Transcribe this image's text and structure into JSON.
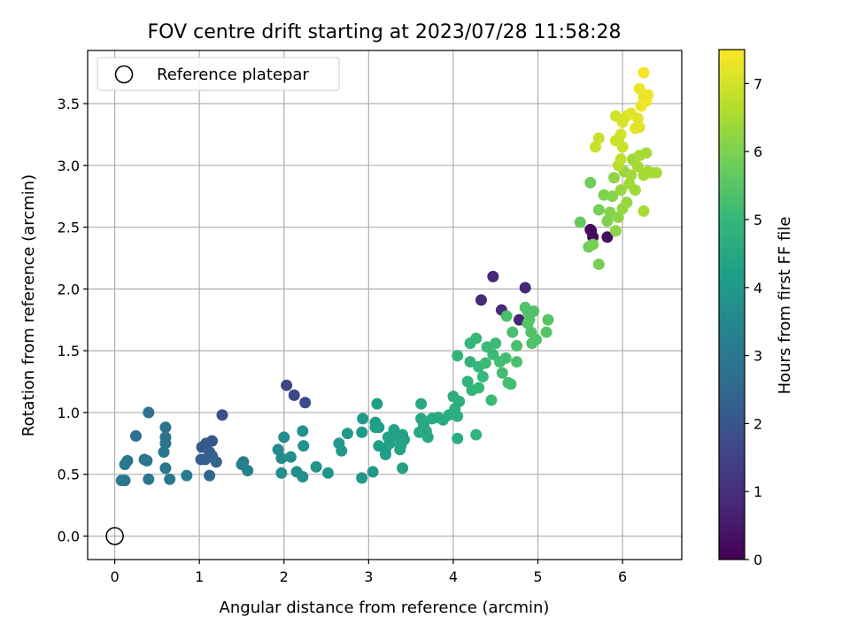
{
  "chart_data": {
    "type": "scatter",
    "title": "FOV centre drift starting at 2023/07/28 11:58:28",
    "xlabel": "Angular distance from reference (arcmin)",
    "ylabel": "Rotation from reference (arcmin)",
    "xlim": [
      -0.32,
      6.7
    ],
    "ylim": [
      -0.19,
      3.93
    ],
    "xticks": [
      0,
      1,
      2,
      3,
      4,
      5,
      6
    ],
    "yticks": [
      0.0,
      0.5,
      1.0,
      1.5,
      2.0,
      2.5,
      3.0,
      3.5
    ],
    "ytick_labels": [
      "0.0",
      "0.5",
      "1.0",
      "1.5",
      "2.0",
      "2.5",
      "3.0",
      "3.5"
    ],
    "grid": true,
    "legend": {
      "position": "top-left",
      "entries": [
        "Reference platepar"
      ]
    },
    "reference_point": {
      "x": 0,
      "y": 0,
      "marker": "open-circle"
    },
    "colorbar": {
      "label": "Hours from first FF file",
      "min": 0,
      "max": 7.5,
      "ticks": [
        0,
        1,
        2,
        3,
        4,
        5,
        6,
        7
      ],
      "colormap": [
        "#440154",
        "#482878",
        "#3e4989",
        "#31688e",
        "#26828e",
        "#1f9e89",
        "#35b779",
        "#6ece58",
        "#b5de2b",
        "#fde725"
      ]
    },
    "points": [
      [
        5.63,
        2.47,
        0.1
      ],
      [
        5.65,
        2.42,
        0.2
      ],
      [
        5.82,
        2.42,
        0.3
      ],
      [
        5.62,
        2.48,
        0.2
      ],
      [
        4.47,
        2.1,
        0.9
      ],
      [
        4.33,
        1.91,
        0.9
      ],
      [
        4.85,
        2.01,
        0.8
      ],
      [
        4.57,
        1.83,
        0.9
      ],
      [
        4.78,
        1.75,
        0.8
      ],
      [
        2.03,
        1.22,
        1.6
      ],
      [
        2.12,
        1.14,
        1.7
      ],
      [
        2.25,
        1.08,
        1.7
      ],
      [
        1.27,
        0.98,
        1.8
      ],
      [
        1.15,
        0.77,
        2.0
      ],
      [
        1.08,
        0.75,
        2.1
      ],
      [
        1.03,
        0.72,
        2.1
      ],
      [
        1.12,
        0.68,
        2.2
      ],
      [
        1.02,
        0.62,
        2.2
      ],
      [
        1.15,
        0.65,
        2.3
      ],
      [
        1.07,
        0.62,
        2.3
      ],
      [
        1.2,
        0.6,
        2.4
      ],
      [
        1.12,
        0.49,
        2.5
      ],
      [
        0.4,
        1.0,
        2.8
      ],
      [
        0.25,
        0.81,
        2.8
      ],
      [
        0.6,
        0.88,
        2.9
      ],
      [
        0.6,
        0.8,
        2.9
      ],
      [
        0.6,
        0.75,
        2.9
      ],
      [
        0.58,
        0.68,
        3.0
      ],
      [
        0.12,
        0.58,
        3.0
      ],
      [
        0.15,
        0.61,
        3.0
      ],
      [
        0.35,
        0.62,
        3.0
      ],
      [
        0.38,
        0.61,
        3.0
      ],
      [
        0.6,
        0.55,
        3.0
      ],
      [
        0.08,
        0.45,
        3.0
      ],
      [
        0.12,
        0.45,
        3.0
      ],
      [
        0.4,
        0.46,
        3.0
      ],
      [
        0.65,
        0.46,
        3.0
      ],
      [
        0.85,
        0.49,
        3.1
      ],
      [
        1.5,
        0.58,
        3.2
      ],
      [
        1.52,
        0.6,
        3.2
      ],
      [
        1.57,
        0.53,
        3.3
      ],
      [
        1.93,
        0.7,
        3.6
      ],
      [
        2.0,
        0.8,
        3.6
      ],
      [
        1.97,
        0.63,
        3.6
      ],
      [
        2.08,
        0.64,
        3.7
      ],
      [
        1.97,
        0.51,
        3.7
      ],
      [
        2.15,
        0.52,
        3.7
      ],
      [
        2.22,
        0.48,
        3.7
      ],
      [
        2.22,
        0.85,
        3.8
      ],
      [
        2.23,
        0.73,
        3.8
      ],
      [
        2.38,
        0.56,
        3.9
      ],
      [
        2.52,
        0.51,
        3.9
      ],
      [
        2.65,
        0.75,
        4.0
      ],
      [
        2.68,
        0.69,
        4.0
      ],
      [
        2.75,
        0.83,
        4.0
      ],
      [
        2.92,
        0.84,
        4.0
      ],
      [
        2.93,
        0.95,
        4.1
      ],
      [
        2.92,
        0.47,
        4.0
      ],
      [
        3.05,
        0.52,
        4.0
      ],
      [
        3.1,
        1.07,
        4.2
      ],
      [
        3.08,
        0.92,
        4.2
      ],
      [
        3.12,
        0.88,
        4.2
      ],
      [
        3.08,
        0.88,
        4.2
      ],
      [
        3.12,
        0.73,
        4.2
      ],
      [
        3.2,
        0.7,
        4.2
      ],
      [
        3.2,
        0.66,
        4.2
      ],
      [
        3.23,
        0.8,
        4.3
      ],
      [
        3.25,
        0.75,
        4.3
      ],
      [
        3.3,
        0.86,
        4.3
      ],
      [
        3.35,
        0.8,
        4.3
      ],
      [
        3.38,
        0.73,
        4.3
      ],
      [
        3.4,
        0.82,
        4.3
      ],
      [
        3.42,
        0.78,
        4.3
      ],
      [
        3.37,
        0.7,
        4.3
      ],
      [
        3.4,
        0.55,
        4.3
      ],
      [
        3.62,
        1.07,
        4.5
      ],
      [
        3.62,
        0.95,
        4.5
      ],
      [
        3.65,
        0.9,
        4.5
      ],
      [
        3.6,
        0.84,
        4.5
      ],
      [
        3.68,
        0.85,
        4.5
      ],
      [
        3.7,
        0.8,
        4.5
      ],
      [
        3.75,
        0.95,
        4.6
      ],
      [
        3.82,
        0.96,
        4.6
      ],
      [
        3.88,
        0.94,
        4.6
      ],
      [
        3.95,
        0.98,
        4.6
      ],
      [
        4.0,
        1.13,
        4.7
      ],
      [
        4.02,
        1.03,
        4.7
      ],
      [
        4.05,
        0.97,
        4.7
      ],
      [
        4.07,
        1.09,
        4.7
      ],
      [
        4.05,
        0.79,
        4.7
      ],
      [
        4.05,
        1.46,
        4.9
      ],
      [
        4.17,
        1.25,
        4.9
      ],
      [
        4.2,
        1.41,
        4.9
      ],
      [
        4.22,
        1.18,
        4.9
      ],
      [
        4.27,
        0.82,
        4.9
      ],
      [
        4.2,
        1.56,
        5.0
      ],
      [
        4.27,
        1.6,
        5.0
      ],
      [
        4.3,
        1.37,
        5.0
      ],
      [
        4.3,
        1.2,
        5.0
      ],
      [
        4.35,
        1.29,
        5.0
      ],
      [
        4.38,
        1.4,
        5.1
      ],
      [
        4.4,
        1.53,
        5.1
      ],
      [
        4.45,
        1.1,
        5.1
      ],
      [
        4.47,
        1.47,
        5.1
      ],
      [
        4.5,
        1.56,
        5.1
      ],
      [
        4.55,
        1.41,
        5.2
      ],
      [
        4.58,
        1.32,
        5.2
      ],
      [
        4.62,
        1.44,
        5.2
      ],
      [
        4.65,
        1.24,
        5.2
      ],
      [
        4.68,
        1.23,
        5.2
      ],
      [
        4.63,
        1.78,
        5.3
      ],
      [
        4.7,
        1.65,
        5.3
      ],
      [
        4.75,
        1.54,
        5.3
      ],
      [
        4.75,
        1.41,
        5.3
      ],
      [
        4.85,
        1.85,
        5.4
      ],
      [
        4.88,
        1.82,
        5.4
      ],
      [
        4.9,
        1.75,
        5.4
      ],
      [
        4.95,
        1.82,
        5.4
      ],
      [
        4.92,
        1.65,
        5.4
      ],
      [
        4.93,
        1.56,
        5.4
      ],
      [
        4.98,
        1.59,
        5.4
      ],
      [
        5.1,
        1.65,
        5.5
      ],
      [
        5.12,
        1.75,
        5.5
      ],
      [
        4.88,
        1.72,
        5.5
      ],
      [
        5.5,
        2.54,
        5.7
      ],
      [
        5.62,
        2.86,
        5.8
      ],
      [
        5.6,
        2.34,
        5.8
      ],
      [
        5.72,
        2.2,
        5.9
      ],
      [
        5.65,
        2.36,
        5.9
      ],
      [
        5.72,
        2.64,
        5.9
      ],
      [
        5.78,
        2.76,
        6.0
      ],
      [
        5.82,
        2.55,
        6.0
      ],
      [
        5.85,
        2.62,
        6.1
      ],
      [
        5.88,
        2.75,
        6.1
      ],
      [
        5.9,
        2.9,
        6.2
      ],
      [
        5.92,
        2.47,
        6.2
      ],
      [
        5.95,
        2.58,
        6.2
      ],
      [
        5.98,
        2.8,
        6.3
      ],
      [
        6.0,
        2.65,
        6.3
      ],
      [
        6.02,
        2.95,
        6.3
      ],
      [
        6.05,
        2.7,
        6.3
      ],
      [
        6.08,
        2.85,
        6.4
      ],
      [
        6.1,
        2.92,
        6.4
      ],
      [
        6.12,
        3.05,
        6.4
      ],
      [
        6.15,
        2.8,
        6.4
      ],
      [
        6.18,
        2.99,
        6.5
      ],
      [
        6.2,
        3.08,
        6.5
      ],
      [
        6.25,
        2.92,
        6.5
      ],
      [
        6.28,
        3.1,
        6.5
      ],
      [
        6.3,
        2.95,
        6.5
      ],
      [
        6.35,
        2.94,
        6.5
      ],
      [
        6.4,
        2.94,
        6.5
      ],
      [
        6.25,
        2.63,
        6.5
      ],
      [
        5.95,
        3.0,
        6.7
      ],
      [
        5.98,
        3.05,
        6.8
      ],
      [
        6.0,
        3.15,
        6.9
      ],
      [
        5.98,
        3.25,
        7.0
      ],
      [
        5.92,
        3.2,
        7.0
      ],
      [
        6.0,
        3.35,
        7.1
      ],
      [
        6.05,
        3.4,
        7.1
      ],
      [
        6.1,
        3.42,
        7.2
      ],
      [
        6.15,
        3.3,
        7.2
      ],
      [
        6.18,
        3.38,
        7.2
      ],
      [
        6.2,
        3.31,
        7.2
      ],
      [
        6.22,
        3.48,
        7.3
      ],
      [
        6.25,
        3.55,
        7.3
      ],
      [
        6.2,
        3.62,
        7.3
      ],
      [
        6.28,
        3.52,
        7.4
      ],
      [
        6.25,
        3.75,
        7.4
      ],
      [
        5.68,
        3.15,
        6.9
      ],
      [
        5.72,
        3.22,
        6.9
      ],
      [
        5.92,
        3.4,
        7.0
      ],
      [
        6.3,
        3.57,
        7.3
      ],
      [
        5.95,
        3.2,
        6.9
      ]
    ]
  }
}
